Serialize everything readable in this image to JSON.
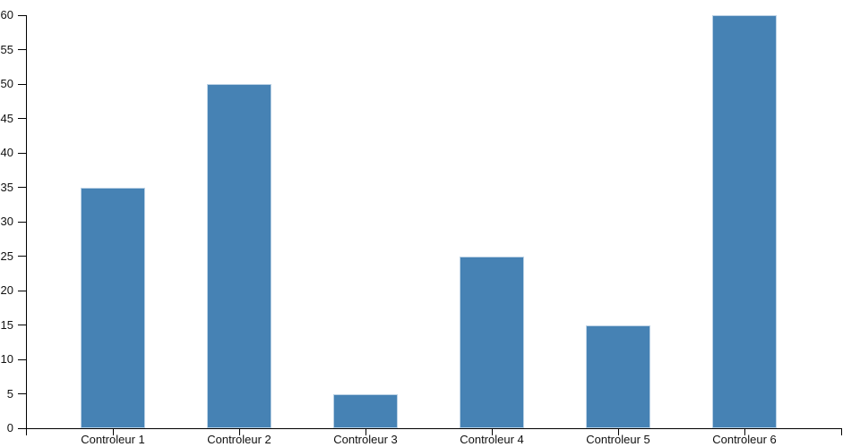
{
  "chart_data": {
    "type": "bar",
    "title": "",
    "xlabel": "",
    "ylabel": "",
    "categories": [
      "Controleur 1",
      "Controleur 2",
      "Controleur 3",
      "Controleur 4",
      "Controleur 5",
      "Controleur 6"
    ],
    "values": [
      35,
      50,
      5,
      25,
      15,
      60
    ],
    "ylim": [
      0,
      60
    ],
    "yticks": [
      0,
      5,
      10,
      15,
      20,
      25,
      30,
      35,
      40,
      45,
      50,
      55,
      60
    ],
    "grid": false,
    "legend": null,
    "colors": {
      "bar_fill": "#4682b4",
      "bar_edge": "#c7d9ea",
      "axis": "#000000",
      "text": "#111111",
      "background": "#ffffff"
    }
  }
}
